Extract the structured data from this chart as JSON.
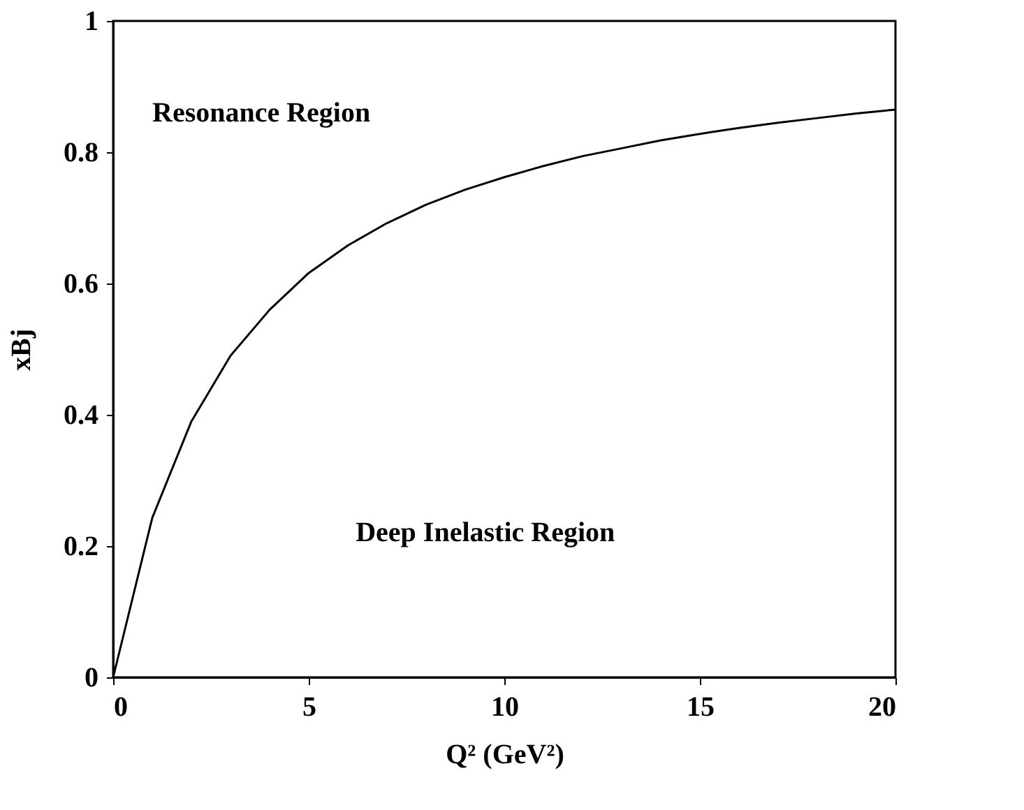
{
  "chart_data": {
    "type": "line",
    "xlabel": "Q² (GeV²)",
    "ylabel": "xBj",
    "x": [
      0,
      1,
      2,
      3,
      4,
      5,
      6,
      7,
      8,
      9,
      10,
      11,
      12,
      13,
      14,
      15,
      16,
      17,
      18,
      19,
      20
    ],
    "series": [
      {
        "color": "#000000",
        "values": [
          0,
          0.243,
          0.39,
          0.49,
          0.56,
          0.616,
          0.658,
          0.692,
          0.72,
          0.743,
          0.762,
          0.779,
          0.794,
          0.806,
          0.818,
          0.828,
          0.837,
          0.845,
          0.852,
          0.859,
          0.865
        ]
      }
    ],
    "xlim": [
      0,
      20
    ],
    "xticks": [
      0,
      5,
      10,
      15,
      20
    ],
    "ylim": [
      0,
      1
    ],
    "yticks": [
      0,
      0.2,
      0.4,
      0.6,
      0.8,
      1
    ],
    "annotations": [
      "Resonance Region",
      "Deep Inelastic Region"
    ],
    "grid": false,
    "marker": "none",
    "line_style": "solid"
  }
}
